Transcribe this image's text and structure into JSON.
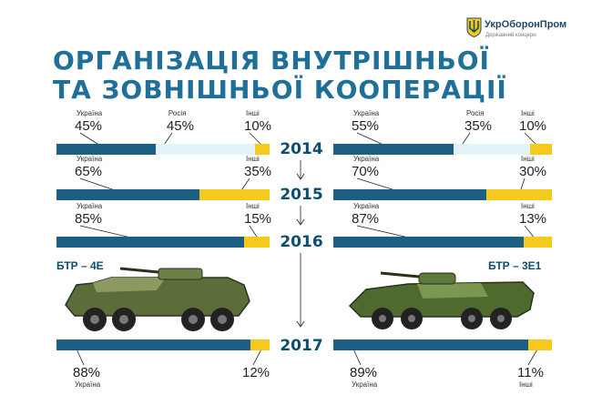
{
  "header": {
    "title_line1": "ОРГАНІЗАЦІЯ ВНУТРІШНЬОЇ",
    "title_line2": "ТА ЗОВНІШНЬОЇ КООПЕРАЦІЇ",
    "brand": "УкрОборонПром",
    "brand_sub": "Державний концерн",
    "logo_icon": "trident-shield-icon"
  },
  "colors": {
    "ukraine": "#1c5f82",
    "russia": "#e2f3f9",
    "other": "#f6c91d",
    "title": "#1f6f98"
  },
  "years": [
    "2014",
    "2015",
    "2016",
    "2017"
  ],
  "vehicles": {
    "left": "БТР – 4Е",
    "right": "БТР – 3Е1"
  },
  "left_rows": [
    {
      "year": "2014",
      "segments": [
        {
          "label": "Україна",
          "pct": "45%",
          "value": 45,
          "kind": "ukraine"
        },
        {
          "label": "Росія",
          "pct": "45%",
          "value": 45,
          "kind": "russia"
        },
        {
          "label": "Інші",
          "pct": "10%",
          "value": 10,
          "kind": "other"
        }
      ]
    },
    {
      "year": "2015",
      "segments": [
        {
          "label": "Україна",
          "pct": "65%",
          "value": 65,
          "kind": "ukraine"
        },
        {
          "label": "Інші",
          "pct": "35%",
          "value": 35,
          "kind": "other"
        }
      ]
    },
    {
      "year": "2016",
      "segments": [
        {
          "label": "Україна",
          "pct": "85%",
          "value": 85,
          "kind": "ukraine"
        },
        {
          "label": "Інші",
          "pct": "15%",
          "value": 15,
          "kind": "other"
        }
      ]
    },
    {
      "year": "2017",
      "segments": [
        {
          "label": "Україна",
          "pct": "88%",
          "value": 88,
          "kind": "ukraine"
        },
        {
          "label": "",
          "pct": "12%",
          "value": 12,
          "kind": "other"
        }
      ]
    }
  ],
  "right_rows": [
    {
      "year": "2014",
      "segments": [
        {
          "label": "Україна",
          "pct": "55%",
          "value": 55,
          "kind": "ukraine"
        },
        {
          "label": "Росія",
          "pct": "35%",
          "value": 35,
          "kind": "russia"
        },
        {
          "label": "Інші",
          "pct": "10%",
          "value": 10,
          "kind": "other"
        }
      ]
    },
    {
      "year": "2015",
      "segments": [
        {
          "label": "Україна",
          "pct": "70%",
          "value": 70,
          "kind": "ukraine"
        },
        {
          "label": "Інші",
          "pct": "30%",
          "value": 30,
          "kind": "other"
        }
      ]
    },
    {
      "year": "2016",
      "segments": [
        {
          "label": "Україна",
          "pct": "87%",
          "value": 87,
          "kind": "ukraine"
        },
        {
          "label": "Інші",
          "pct": "13%",
          "value": 13,
          "kind": "other"
        }
      ]
    },
    {
      "year": "2017",
      "segments": [
        {
          "label": "Україна",
          "pct": "89%",
          "value": 89,
          "kind": "ukraine"
        },
        {
          "label": "Інші",
          "pct": "11%",
          "value": 11,
          "kind": "other"
        }
      ]
    }
  ]
}
